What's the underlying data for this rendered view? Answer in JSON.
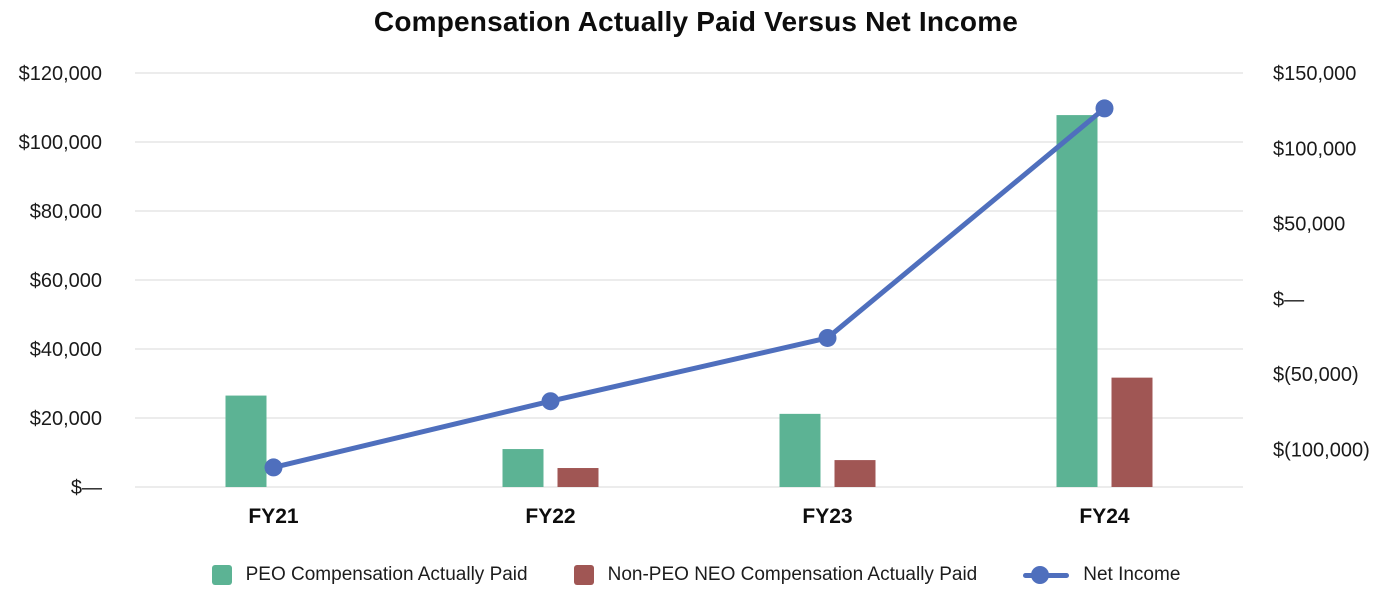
{
  "page": {
    "background": "#ffffff"
  },
  "chart_data": {
    "type": "combo-bar-line-dual-axis",
    "title": "Compensation Actually Paid Versus Net Income",
    "categories": [
      "FY21",
      "FY22",
      "FY23",
      "FY24"
    ],
    "series": [
      {
        "name": "PEO Compensation Actually Paid",
        "type": "bar",
        "axis": "left",
        "color": "#5CB394",
        "values": [
          26500,
          11000,
          21200,
          107800
        ]
      },
      {
        "name": "Non-PEO NEO Compensation Actually Paid",
        "type": "bar",
        "axis": "left",
        "color": "#A05654",
        "values": [
          null,
          5500,
          7800,
          31700
        ]
      },
      {
        "name": "Net Income",
        "type": "line",
        "axis": "right",
        "color": "#4F6FBD",
        "values": [
          -112000,
          -68000,
          -26000,
          126500
        ]
      }
    ],
    "left_axis": {
      "min": 0,
      "max": 120000,
      "ticks": [
        {
          "value": 120000,
          "label": "$120,000"
        },
        {
          "value": 100000,
          "label": "$100,000"
        },
        {
          "value": 80000,
          "label": "$80,000"
        },
        {
          "value": 60000,
          "label": "$60,000"
        },
        {
          "value": 40000,
          "label": "$40,000"
        },
        {
          "value": 20000,
          "label": "$20,000"
        },
        {
          "value": 0,
          "label": "$—"
        }
      ]
    },
    "right_axis": {
      "min": -125000,
      "max": 150000,
      "ticks": [
        {
          "value": 150000,
          "label": "$150,000"
        },
        {
          "value": 100000,
          "label": "$100,000"
        },
        {
          "value": 50000,
          "label": "$50,000"
        },
        {
          "value": 0,
          "label": "$—"
        },
        {
          "value": -50000,
          "label": "$(50,000)"
        },
        {
          "value": -100000,
          "label": "$(100,000)"
        }
      ]
    },
    "grid": true,
    "legend_position": "bottom",
    "colors": {
      "grid": "#ECECEC",
      "text": "#1A1A1A"
    }
  }
}
